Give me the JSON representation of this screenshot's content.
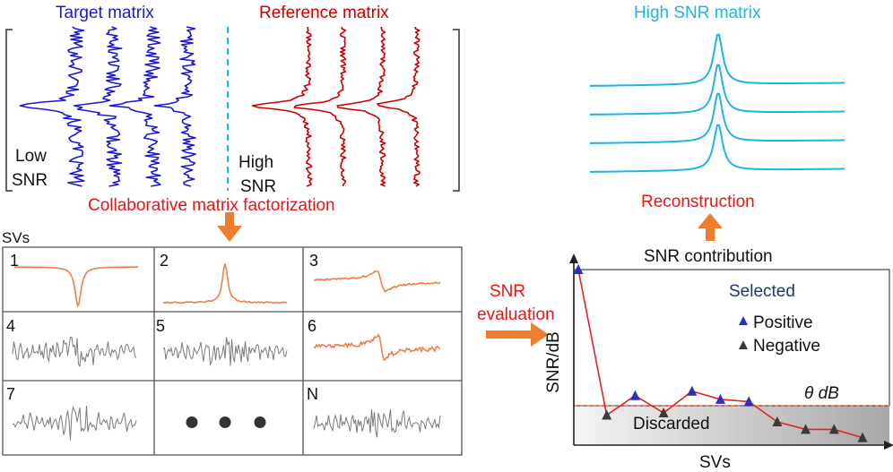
{
  "colors": {
    "target": "#1a1acc",
    "reference": "#cc0000",
    "high_snr": "#1fb3e6",
    "sv_colored": "#ef7f4a",
    "sv_gray": "#7a7a7a",
    "arrow": "#ef7d2e",
    "annot_red": "#e81515",
    "selected_navy": "#1f3864",
    "positive_marker": "#2e2ebf",
    "negative_marker": "#3a3a3a",
    "threshold": "#ef7f4a"
  },
  "top": {
    "target_title": "Target matrix",
    "reference_title": "Reference matrix",
    "high_snr_title": "High SNR matrix",
    "low_snr_line1": "Low",
    "low_snr_line2": "SNR",
    "high_snr_line1": "High",
    "high_snr_line2": "SNR",
    "factorization_label": "Collaborative matrix factorization",
    "reconstruction_label": "Reconstruction"
  },
  "grid": {
    "title": "SVs",
    "cells": [
      {
        "label": "1",
        "kind": "dip"
      },
      {
        "label": "2",
        "kind": "peak"
      },
      {
        "label": "3",
        "kind": "dispersive"
      },
      {
        "label": "4",
        "kind": "noise"
      },
      {
        "label": "5",
        "kind": "noise"
      },
      {
        "label": "6",
        "kind": "dispersive-noisy"
      },
      {
        "label": "7",
        "kind": "noise"
      },
      {
        "label": "",
        "kind": "ellipsis"
      },
      {
        "label": "N",
        "kind": "noise"
      }
    ]
  },
  "middle": {
    "snr_eval_line1": "SNR",
    "snr_eval_line2": "evaluation"
  },
  "snr_chart": {
    "title": "SNR contribution",
    "ylabel": "SNR/dB",
    "xlabel": "SVs",
    "selected_label": "Selected",
    "discarded_label": "Discarded",
    "threshold_label": "θ dB",
    "legend": {
      "positive": "Positive",
      "negative": "Negative"
    }
  },
  "chart_data": {
    "type": "line",
    "x": [
      1,
      2,
      3,
      4,
      5,
      6,
      7,
      8,
      9,
      10,
      11
    ],
    "series": [
      {
        "values": [
          9.7,
          0.0,
          1.3,
          0.15,
          1.6,
          1.05,
          0.9,
          -0.45,
          -0.95,
          -0.95,
          -1.5
        ]
      }
    ],
    "marker_type": [
      "Positive",
      "Negative",
      "Positive",
      "Negative",
      "Positive",
      "Positive",
      "Positive",
      "Negative",
      "Negative",
      "Negative",
      "Negative"
    ],
    "threshold": 0.4,
    "title": "SNR contribution",
    "xlabel": "SVs",
    "ylabel": "SNR/dB",
    "ylim": [
      -2,
      10
    ]
  }
}
